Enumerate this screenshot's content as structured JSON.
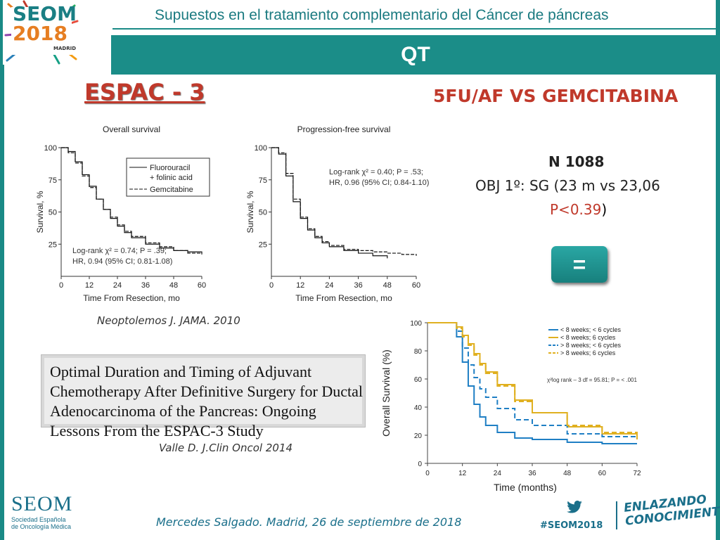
{
  "header": {
    "logo_line1": "SEOM",
    "logo_line2": "2018",
    "logo_city": "MADRID",
    "title": "Supuestos en el tratamiento complementario del Cáncer de páncreas",
    "banner": "QT"
  },
  "main": {
    "trial_title": "ESPAC - 3",
    "comparison_title": "5FU/AF  VS GEMCITABINA",
    "n_line": "N 1088",
    "obj_line": "OBJ 1º: SG  (23 m vs 23,06",
    "p_value": "P<0.39",
    "p_close": ")",
    "equal_symbol": "="
  },
  "citations": {
    "neoptolemos": "Neoptolemos J. JAMA. 2010",
    "paper_title": "Optimal Duration and Timing of Adjuvant Chemotherapy After Definitive Surgery for Ductal Adenocarcinoma of the Pancreas: Ongoing Lessons From the ESPAC-3 Study",
    "valle": "Valle D. J.Clin Oncol 2014"
  },
  "footer": {
    "seom": "SEOM",
    "seom_sub1": "Sociedad Española",
    "seom_sub2": "de Oncología Médica",
    "author": "Mercedes Salgado. Madrid, 26 de septiembre de 2018",
    "hashtag": "#SEOM2018",
    "slogan1": "ENLAZANDO",
    "slogan2": "CONOCIMIENTO"
  },
  "colors": {
    "teal": "#1b8d88",
    "red": "#c0392b",
    "blue_series": "#1f7fc4",
    "gold_series": "#e0b020"
  },
  "chart_data": [
    {
      "type": "line",
      "title": "Overall survival",
      "xlabel": "Time From Resection, mo",
      "ylabel": "Survival, %",
      "xticks": [
        0,
        12,
        24,
        36,
        48,
        60
      ],
      "yticks": [
        25,
        50,
        75,
        100
      ],
      "xlim": [
        0,
        60
      ],
      "ylim": [
        0,
        100
      ],
      "legend": [
        "Fluorouracil",
        "+ folinic acid",
        "Gemcitabine"
      ],
      "annotation": [
        "Log-rank χ² = 0.74; P = .39;",
        "HR, 0.94 (95% CI; 0.81-1.08)"
      ],
      "series": [
        {
          "name": "Fluorouracil + folinic acid",
          "style": "solid",
          "x": [
            0,
            3,
            6,
            9,
            12,
            15,
            18,
            21,
            24,
            27,
            30,
            36,
            42,
            48,
            54,
            60
          ],
          "y": [
            100,
            97,
            89,
            79,
            70,
            60,
            52,
            45,
            39,
            34,
            30,
            25,
            22,
            20,
            19,
            18
          ]
        },
        {
          "name": "Gemcitabine",
          "style": "dashed",
          "x": [
            0,
            3,
            6,
            9,
            12,
            15,
            18,
            21,
            24,
            27,
            30,
            36,
            42,
            48,
            54,
            60
          ],
          "y": [
            100,
            96,
            88,
            78,
            69,
            60,
            52,
            46,
            40,
            35,
            31,
            26,
            23,
            20,
            18,
            17
          ]
        }
      ]
    },
    {
      "type": "line",
      "title": "Progression-free survival",
      "xlabel": "Time From Resection, mo",
      "ylabel": "Survival, %",
      "xticks": [
        0,
        12,
        24,
        36,
        48,
        60
      ],
      "yticks": [
        25,
        50,
        75,
        100
      ],
      "xlim": [
        0,
        60
      ],
      "ylim": [
        0,
        100
      ],
      "annotation": [
        "Log-rank χ² = 0.40; P = .53;",
        "HR, 0.96 (95% CI; 0.84-1.10)"
      ],
      "series": [
        {
          "name": "Fluorouracil + folinic acid",
          "style": "solid",
          "x": [
            0,
            3,
            6,
            9,
            12,
            15,
            18,
            21,
            24,
            30,
            36,
            42,
            48
          ],
          "y": [
            100,
            95,
            78,
            58,
            45,
            36,
            30,
            26,
            23,
            20,
            18,
            16,
            14
          ]
        },
        {
          "name": "Gemcitabine",
          "style": "dashed",
          "x": [
            0,
            3,
            6,
            9,
            12,
            15,
            18,
            21,
            24,
            30,
            36,
            42,
            48,
            54,
            60
          ],
          "y": [
            100,
            96,
            80,
            60,
            46,
            37,
            31,
            27,
            24,
            21,
            20,
            19,
            18,
            17,
            16
          ]
        }
      ]
    },
    {
      "type": "line",
      "xlabel": "Time (months)",
      "ylabel": "Overall Survival (%)",
      "xticks": [
        0,
        12,
        24,
        36,
        48,
        60,
        72
      ],
      "yticks": [
        0,
        20,
        40,
        60,
        80,
        100
      ],
      "xlim": [
        0,
        72
      ],
      "ylim": [
        0,
        100
      ],
      "annotation": "χ²log rank – 3 df = 95.81; P = < .001",
      "series": [
        {
          "name": "< 8 weeks; < 6 cycles",
          "color": "blue",
          "style": "solid",
          "x": [
            0,
            8,
            10,
            12,
            14,
            16,
            18,
            20,
            24,
            30,
            36,
            48,
            60,
            72
          ],
          "y": [
            100,
            100,
            90,
            72,
            55,
            42,
            33,
            27,
            22,
            18,
            17,
            15,
            14,
            14
          ]
        },
        {
          "name": "< 8 weeks; 6 cycles",
          "color": "gold",
          "style": "solid",
          "x": [
            0,
            8,
            10,
            12,
            14,
            16,
            18,
            20,
            24,
            30,
            36,
            48,
            60,
            72
          ],
          "y": [
            100,
            100,
            97,
            91,
            85,
            78,
            71,
            65,
            56,
            45,
            36,
            26,
            21,
            17
          ]
        },
        {
          "name": "> 8 weeks; < 6 cycles",
          "color": "blue",
          "style": "dashed",
          "x": [
            0,
            8,
            10,
            12,
            14,
            16,
            18,
            20,
            24,
            30,
            36,
            48,
            60,
            72
          ],
          "y": [
            100,
            100,
            94,
            82,
            70,
            61,
            53,
            47,
            39,
            31,
            27,
            21,
            19,
            18
          ]
        },
        {
          "name": "> 8 weeks; 6 cycles",
          "color": "gold",
          "style": "dashed",
          "x": [
            0,
            8,
            10,
            12,
            14,
            16,
            18,
            20,
            24,
            30,
            36,
            48,
            60,
            72
          ],
          "y": [
            100,
            100,
            96,
            90,
            84,
            77,
            70,
            64,
            55,
            44,
            36,
            27,
            22,
            19
          ]
        }
      ]
    }
  ]
}
